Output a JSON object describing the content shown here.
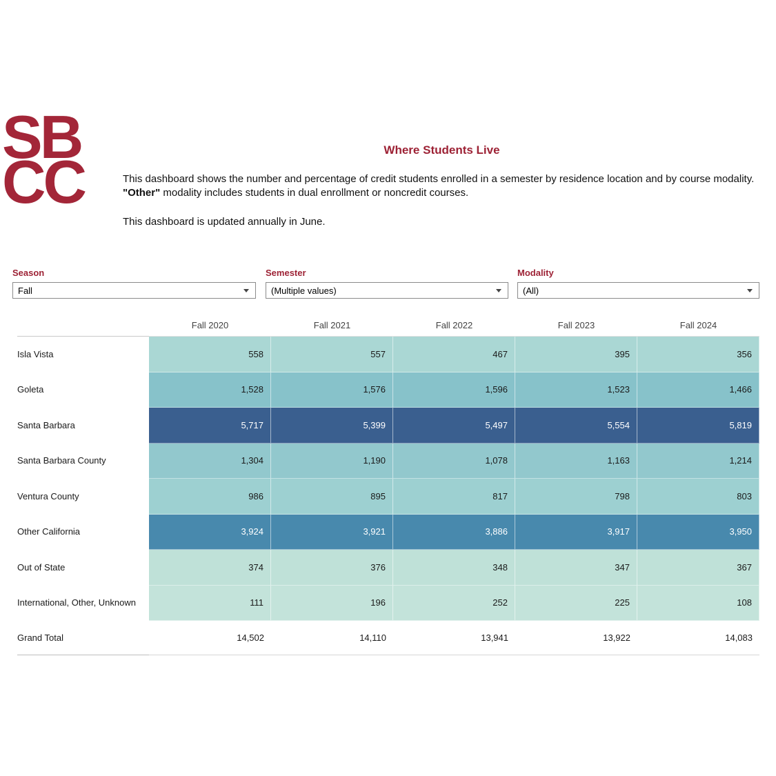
{
  "logo": {
    "line1": "SB",
    "line2": "CC"
  },
  "header": {
    "title": "Where Students Live",
    "description": {
      "part1": "This dashboard shows the number and percentage of credit students enrolled in a semester by residence location and by course modality.  ",
      "part2_bold": "\"Other\"",
      "part3": " modality includes students in dual enrollment or noncredit courses."
    },
    "update_note": "This dashboard is updated annually in June."
  },
  "filters": [
    {
      "label": "Season",
      "value": "Fall"
    },
    {
      "label": "Semester",
      "value": "(Multiple values)"
    },
    {
      "label": "Modality",
      "value": "(All)"
    }
  ],
  "colors": {
    "brand_red": "#a32638",
    "heading_red": "#9d2235",
    "dark_row_blue": "#3a5f8f",
    "medium_row_blue": "#4889ad"
  },
  "chart_data": {
    "type": "heatmap",
    "title": "Where Students Live",
    "columns": [
      "Fall 2020",
      "Fall 2021",
      "Fall 2022",
      "Fall 2023",
      "Fall 2024"
    ],
    "rows": [
      {
        "label": "Isla Vista",
        "values": [
          "558",
          "557",
          "467",
          "395",
          "356"
        ],
        "color": "#aad7d4",
        "text_color": "#1a1a1a"
      },
      {
        "label": "Goleta",
        "values": [
          "1,528",
          "1,576",
          "1,596",
          "1,523",
          "1,466"
        ],
        "color": "#87c2ca",
        "text_color": "#1a1a1a"
      },
      {
        "label": "Santa Barbara",
        "values": [
          "5,717",
          "5,399",
          "5,497",
          "5,554",
          "5,819"
        ],
        "color": "#3a5f8f",
        "text_color": "#ffffff"
      },
      {
        "label": "Santa Barbara County",
        "values": [
          "1,304",
          "1,190",
          "1,078",
          "1,163",
          "1,214"
        ],
        "color": "#92c8cd",
        "text_color": "#1a1a1a"
      },
      {
        "label": "Ventura County",
        "values": [
          "986",
          "895",
          "817",
          "798",
          "803"
        ],
        "color": "#9dd0d1",
        "text_color": "#1a1a1a"
      },
      {
        "label": "Other California",
        "values": [
          "3,924",
          "3,921",
          "3,886",
          "3,917",
          "3,950"
        ],
        "color": "#4889ad",
        "text_color": "#ffffff"
      },
      {
        "label": "Out of State",
        "values": [
          "374",
          "376",
          "348",
          "347",
          "367"
        ],
        "color": "#bfe1d8",
        "text_color": "#1a1a1a"
      },
      {
        "label": "International, Other, Unknown",
        "values": [
          "111",
          "196",
          "252",
          "225",
          "108"
        ],
        "color": "#c3e3da",
        "text_color": "#1a1a1a"
      },
      {
        "label": "Grand Total",
        "values": [
          "14,502",
          "14,110",
          "13,941",
          "13,922",
          "14,083"
        ],
        "color": "#ffffff",
        "text_color": "#1a1a1a",
        "total": true
      }
    ]
  }
}
